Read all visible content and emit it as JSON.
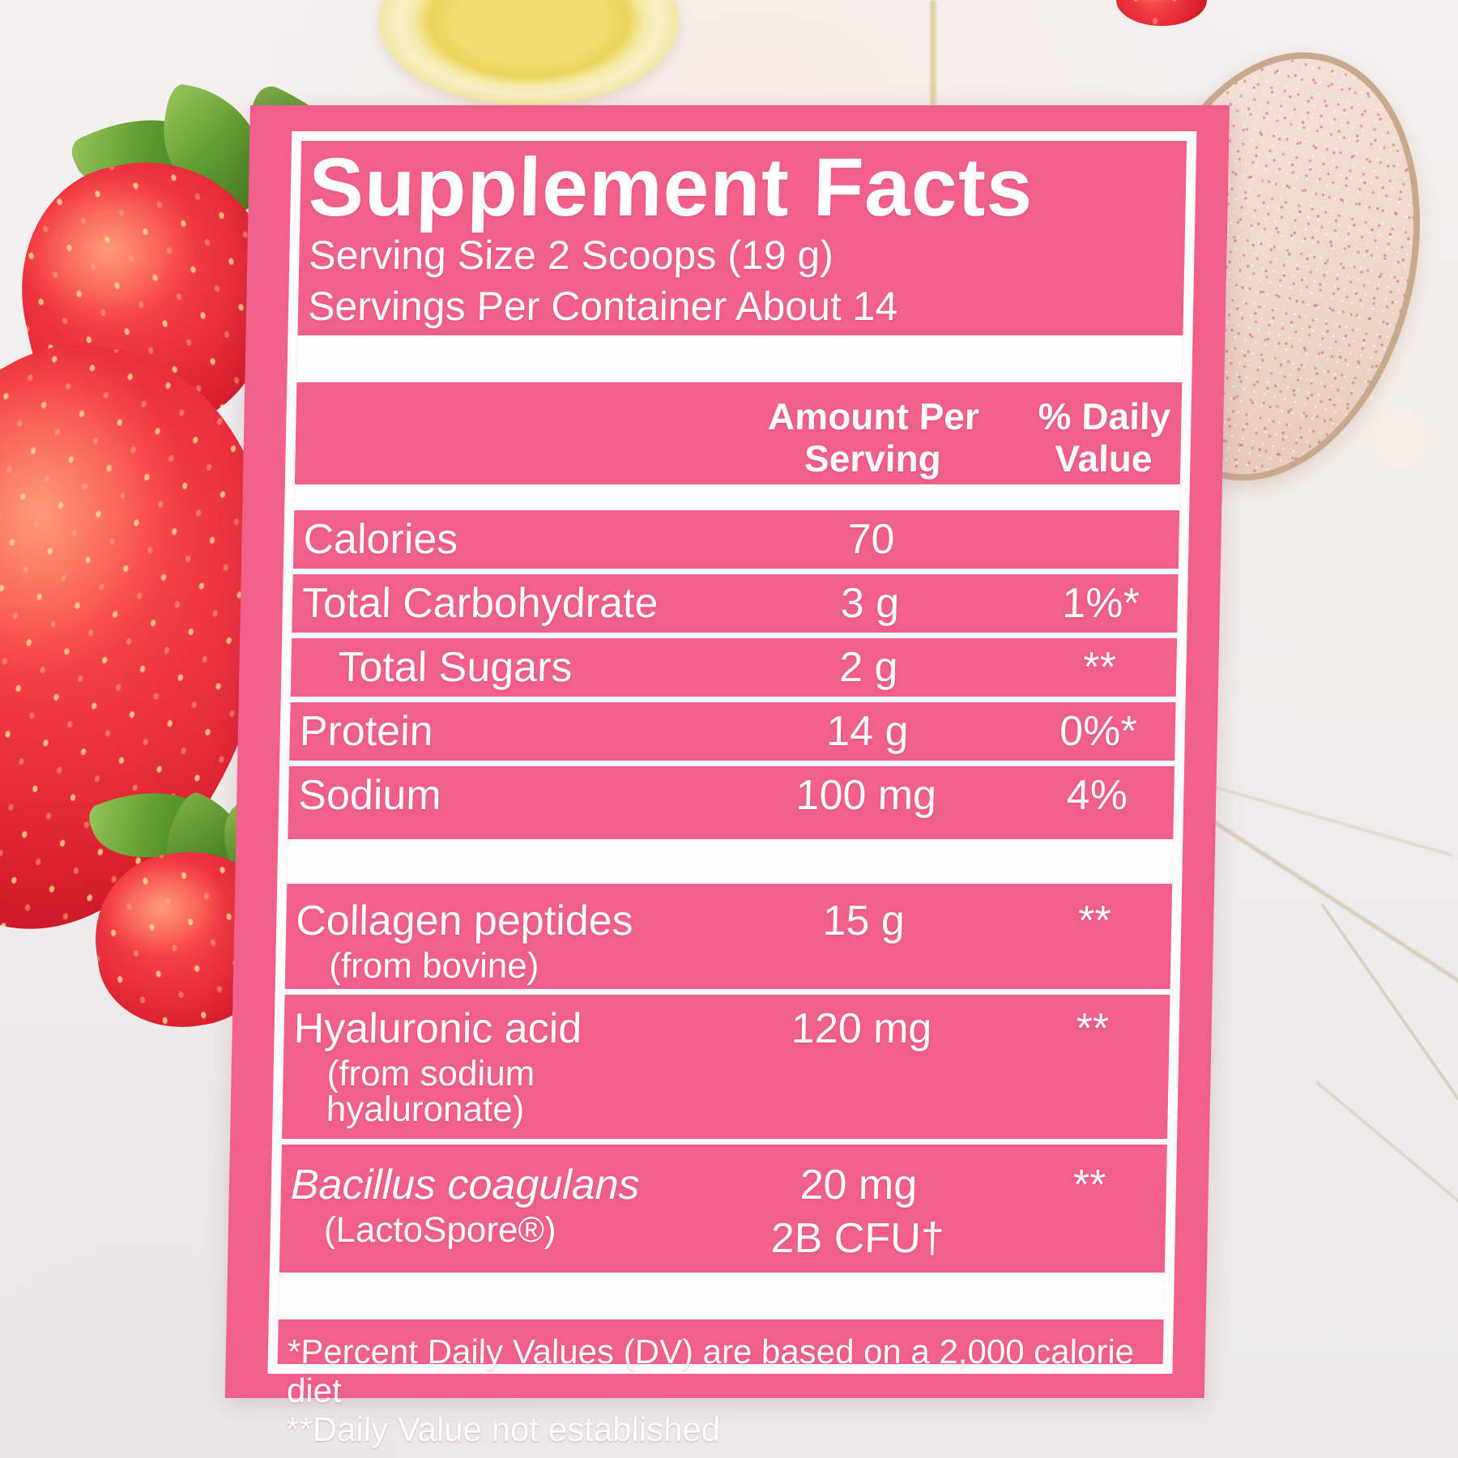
{
  "label": {
    "title": "Supplement Facts",
    "serving_size": "Serving Size 2 Scoops (19 g)",
    "servings_per_container": "Servings Per Container About 14",
    "columns": {
      "amount": "Amount Per Serving",
      "daily_value": "% Daily Value"
    },
    "rows": [
      {
        "name": "Calories",
        "amount": "70",
        "dv": ""
      },
      {
        "name": "Total Carbohydrate",
        "amount": "3 g",
        "dv": "1%*"
      },
      {
        "name": "Total Sugars",
        "amount": "2 g",
        "dv": "**"
      },
      {
        "name": "Protein",
        "amount": "14 g",
        "dv": "0%*"
      },
      {
        "name": "Sodium",
        "amount": "100 mg",
        "dv": "4%"
      }
    ],
    "ingredients": [
      {
        "name": "Collagen peptides",
        "source": "(from bovine)",
        "amount": "15 g",
        "amount2": "",
        "dv": "**"
      },
      {
        "name": "Hyaluronic acid",
        "source": "(from sodium hyaluronate)",
        "amount": "120 mg",
        "amount2": "",
        "dv": "**"
      },
      {
        "name": "Bacillus coagulans",
        "source": "(LactoSpore®)",
        "amount": "20 mg",
        "amount2": "2B CFU†",
        "dv": "**"
      }
    ],
    "footnotes": [
      "*Percent Daily Values (DV) are based on a 2,000 calorie diet",
      "**Daily Value not established"
    ],
    "colors": {
      "label_pink": "#f0608a",
      "text_white": "#ffffff"
    }
  },
  "scene": {
    "objects": [
      "strawberries",
      "lemon-slice",
      "pink-speckled-spoon",
      "marble-countertop"
    ],
    "palette": {
      "strawberry_red": "#e8303a",
      "leaf_green": "#64a134",
      "lemon_yellow": "#f0dc6d",
      "spoon_pink": "#eed6cb",
      "marble": "#f0edeb"
    }
  }
}
